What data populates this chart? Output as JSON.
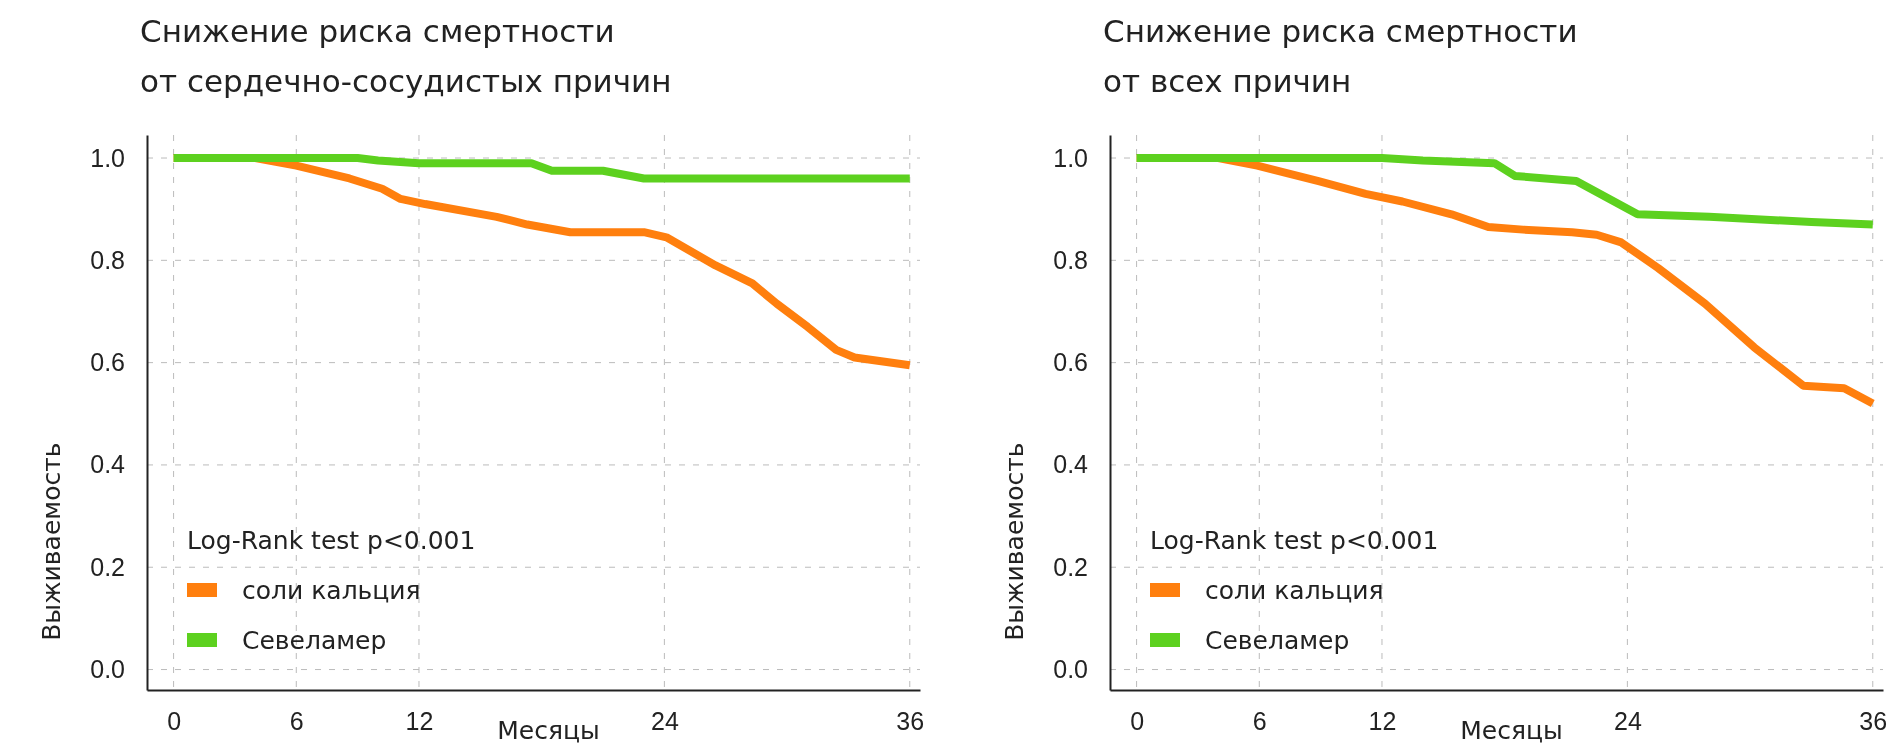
{
  "chart_data": [
    {
      "type": "line",
      "title": "Снижение риска смертности\nот сердечно-сосудистых причин",
      "xlabel": "Месяцы",
      "ylabel": "Выживаемость",
      "legend_title": "Log-Rank test p<0.001",
      "legend": "bottom left",
      "grid": true,
      "xlim": [
        -1.3,
        36.5
      ],
      "ylim": [
        -0.04,
        1.045
      ],
      "xticks": [
        0,
        6,
        12,
        24,
        36
      ],
      "yticks": [
        {
          "value": 0,
          "label": "0.0"
        },
        {
          "value": 0.2,
          "label": "0.2"
        },
        {
          "value": 0.4,
          "label": "0.4"
        },
        {
          "value": 0.6,
          "label": "0.6"
        },
        {
          "value": 0.8,
          "label": "0.8"
        },
        {
          "value": 1,
          "label": "1.0"
        }
      ],
      "series": [
        {
          "name": "соли кальция",
          "color": "#ff7f0e",
          "x": [
            0,
            4,
            6,
            8.6,
            10.2,
            11.1,
            12.3,
            15.8,
            17.3,
            19.4,
            23,
            24.1,
            26.5,
            28.3,
            29.5,
            31,
            32.4,
            33.3,
            36
          ],
          "values": [
            1,
            1,
            0.985,
            0.96,
            0.94,
            0.92,
            0.91,
            0.885,
            0.87,
            0.855,
            0.855,
            0.845,
            0.79,
            0.755,
            0.715,
            0.67,
            0.625,
            0.61,
            0.595
          ]
        },
        {
          "name": "Севеламер",
          "color": "#5dd11f",
          "x": [
            0,
            9,
            10,
            12,
            17.5,
            18.5,
            21,
            23,
            36
          ],
          "values": [
            1,
            1,
            0.995,
            0.99,
            0.99,
            0.975,
            0.975,
            0.96,
            0.96
          ]
        }
      ]
    },
    {
      "type": "line",
      "title": "Снижение риска смертности\nот всех причин",
      "xlabel": "Месяцы",
      "ylabel": "Выживаемость",
      "legend_title": "Log-Rank test p<0.001",
      "legend": "bottom left",
      "grid": true,
      "xlim": [
        -1.3,
        36.5
      ],
      "ylim": [
        -0.04,
        1.045
      ],
      "xticks": [
        0,
        6,
        12,
        24,
        36
      ],
      "yticks": [
        {
          "value": 0,
          "label": "0.0"
        },
        {
          "value": 0.2,
          "label": "0.2"
        },
        {
          "value": 0.4,
          "label": "0.4"
        },
        {
          "value": 0.6,
          "label": "0.6"
        },
        {
          "value": 0.8,
          "label": "0.8"
        },
        {
          "value": 1,
          "label": "1.0"
        }
      ],
      "series": [
        {
          "name": "соли кальция",
          "color": "#ff7f0e",
          "x": [
            0,
            4,
            5.9,
            8.9,
            11.2,
            13,
            15.4,
            17.2,
            18.9,
            21.3,
            22.5,
            23.7,
            25.5,
            27.8,
            30.2,
            32.6,
            34.6,
            36
          ],
          "values": [
            1,
            1,
            0.985,
            0.955,
            0.93,
            0.915,
            0.89,
            0.865,
            0.86,
            0.855,
            0.85,
            0.835,
            0.785,
            0.715,
            0.63,
            0.555,
            0.55,
            0.52
          ]
        },
        {
          "name": "Севеламер",
          "color": "#5dd11f",
          "x": [
            0,
            12,
            14,
            17.5,
            18.5,
            21.5,
            24.5,
            28,
            33,
            36
          ],
          "values": [
            1,
            1,
            0.995,
            0.99,
            0.965,
            0.955,
            0.89,
            0.885,
            0.875,
            0.87
          ]
        }
      ]
    }
  ]
}
